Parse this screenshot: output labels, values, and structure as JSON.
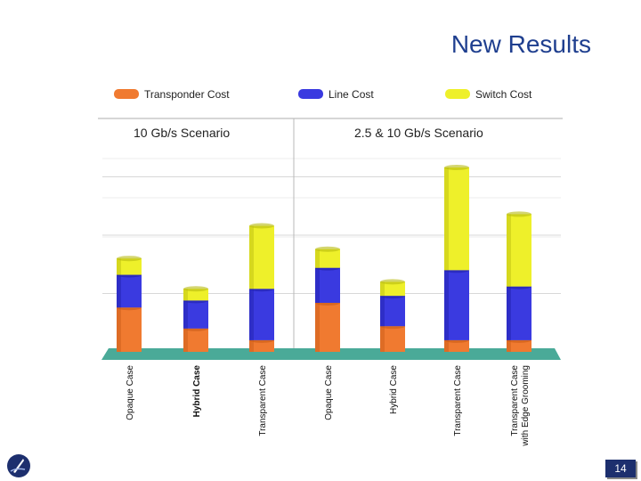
{
  "slide": {
    "title": "New Results",
    "page_number": "14"
  },
  "chart_data": {
    "type": "bar",
    "stacked": true,
    "title": "",
    "xlabel": "",
    "ylabel": "",
    "ylim": [
      0,
      100
    ],
    "grid": true,
    "legend_position": "top",
    "scenarios": [
      {
        "label": "10 Gb/s Scenario",
        "categories": [
          "Opaque Case",
          "Hybrid Case",
          "Transparent Case"
        ]
      },
      {
        "label": "2.5 & 10 Gb/s Scenario",
        "categories": [
          "Opaque Case",
          "Hybrid Case",
          "Transparent Case",
          "Transparent Case with Edge Grooming"
        ]
      }
    ],
    "categories": [
      "Opaque Case",
      "Hybrid Case",
      "Transparent Case",
      "Opaque Case",
      "Hybrid Case",
      "Transparent Case",
      "Transparent Case with Edge Grooming"
    ],
    "series": [
      {
        "name": "Transponder Cost",
        "color": "#f07a30",
        "values": [
          19,
          10,
          5,
          21,
          11,
          5,
          5
        ]
      },
      {
        "name": "Line Cost",
        "color": "#3a3ae0",
        "values": [
          14,
          12,
          22,
          15,
          13,
          30,
          23
        ]
      },
      {
        "name": "Switch Cost",
        "color": "#eef02a",
        "values": [
          7,
          5,
          27,
          8,
          6,
          44,
          31
        ]
      }
    ]
  }
}
